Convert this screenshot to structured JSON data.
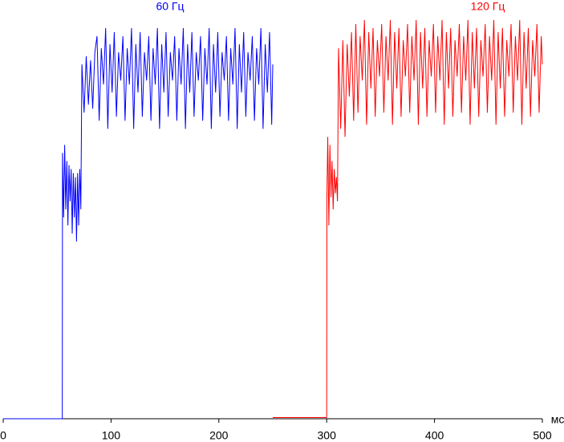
{
  "chart_data": {
    "type": "line",
    "x_label": "мс",
    "xlim": [
      0,
      500
    ],
    "xticks": [
      0,
      100,
      200,
      300,
      400,
      500
    ],
    "ylim": [
      0,
      100
    ],
    "series": [
      {
        "name": "60 Гц",
        "color": "#0000ff",
        "x": [
          0,
          54.8,
          55,
          56,
          57,
          58,
          59,
          60,
          61,
          62,
          63,
          64,
          65,
          66,
          67,
          68,
          69,
          70,
          71,
          72,
          73,
          75,
          77,
          79,
          81,
          83,
          85,
          87,
          89,
          91,
          93,
          95,
          97,
          99,
          101,
          103,
          105,
          107,
          109,
          111,
          113,
          115,
          117,
          119,
          121,
          123,
          125,
          127,
          129,
          131,
          133,
          135,
          137,
          139,
          141,
          143,
          145,
          147,
          149,
          151,
          153,
          155,
          157,
          159,
          161,
          163,
          165,
          167,
          169,
          171,
          173,
          175,
          177,
          179,
          181,
          183,
          185,
          187,
          189,
          191,
          193,
          195,
          197,
          199,
          201,
          203,
          205,
          207,
          209,
          211,
          213,
          215,
          217,
          219,
          221,
          223,
          225,
          227,
          229,
          231,
          233,
          235,
          237,
          239,
          241,
          243,
          245,
          247,
          249,
          250
        ],
        "values": [
          0,
          0,
          66,
          50,
          68,
          52,
          64,
          48,
          63,
          54,
          62,
          46,
          61,
          50,
          60,
          44,
          61,
          48,
          62,
          52,
          88,
          76,
          90,
          78,
          89,
          77,
          91,
          95,
          74,
          92,
          83,
          97,
          72,
          93,
          81,
          96,
          75,
          91,
          84,
          95,
          74,
          92,
          83,
          97,
          72,
          93,
          81,
          96,
          75,
          91,
          84,
          95,
          74,
          92,
          83,
          97,
          72,
          93,
          81,
          96,
          75,
          91,
          84,
          95,
          74,
          92,
          83,
          97,
          72,
          93,
          81,
          96,
          75,
          91,
          84,
          95,
          74,
          92,
          83,
          97,
          72,
          93,
          81,
          96,
          75,
          91,
          84,
          95,
          74,
          92,
          83,
          97,
          72,
          93,
          81,
          96,
          75,
          91,
          84,
          95,
          74,
          92,
          83,
          97,
          72,
          93,
          81,
          96,
          73,
          88
        ]
      },
      {
        "name": "120 Гц",
        "color": "#ff0000",
        "x": [
          250,
          300,
          300.2,
          301,
          302,
          303,
          304,
          305,
          306,
          307,
          308,
          309,
          310,
          311,
          313,
          315,
          317,
          319,
          321,
          323,
          325,
          327,
          329,
          331,
          333,
          335,
          337,
          339,
          341,
          343,
          345,
          347,
          349,
          351,
          353,
          355,
          357,
          359,
          361,
          363,
          365,
          367,
          369,
          371,
          373,
          375,
          377,
          379,
          381,
          383,
          385,
          387,
          389,
          391,
          393,
          395,
          397,
          399,
          401,
          403,
          405,
          407,
          409,
          411,
          413,
          415,
          417,
          419,
          421,
          423,
          425,
          427,
          429,
          431,
          433,
          435,
          437,
          439,
          441,
          443,
          445,
          447,
          449,
          451,
          453,
          455,
          457,
          459,
          461,
          463,
          465,
          467,
          469,
          471,
          473,
          475,
          477,
          479,
          481,
          483,
          485,
          487,
          489,
          491,
          493,
          495,
          497,
          499,
          500
        ],
        "values": [
          0.3,
          0.3,
          55,
          70,
          48,
          68,
          55,
          64,
          52,
          62,
          56,
          60,
          54,
          92,
          72,
          94,
          70,
          93,
          80,
          96,
          74,
          98,
          76,
          95,
          84,
          99,
          73,
          96,
          82,
          97,
          75,
          94,
          85,
          98,
          76,
          95,
          84,
          99,
          73,
          96,
          82,
          97,
          75,
          94,
          85,
          98,
          76,
          95,
          84,
          99,
          73,
          96,
          82,
          97,
          75,
          94,
          85,
          98,
          76,
          95,
          84,
          99,
          73,
          96,
          82,
          97,
          75,
          94,
          85,
          98,
          76,
          95,
          84,
          99,
          73,
          96,
          82,
          97,
          75,
          94,
          85,
          98,
          76,
          95,
          84,
          99,
          73,
          96,
          82,
          97,
          75,
          94,
          85,
          98,
          76,
          95,
          84,
          99,
          73,
          96,
          82,
          97,
          75,
          94,
          85,
          98,
          76,
          95,
          88
        ]
      }
    ]
  }
}
